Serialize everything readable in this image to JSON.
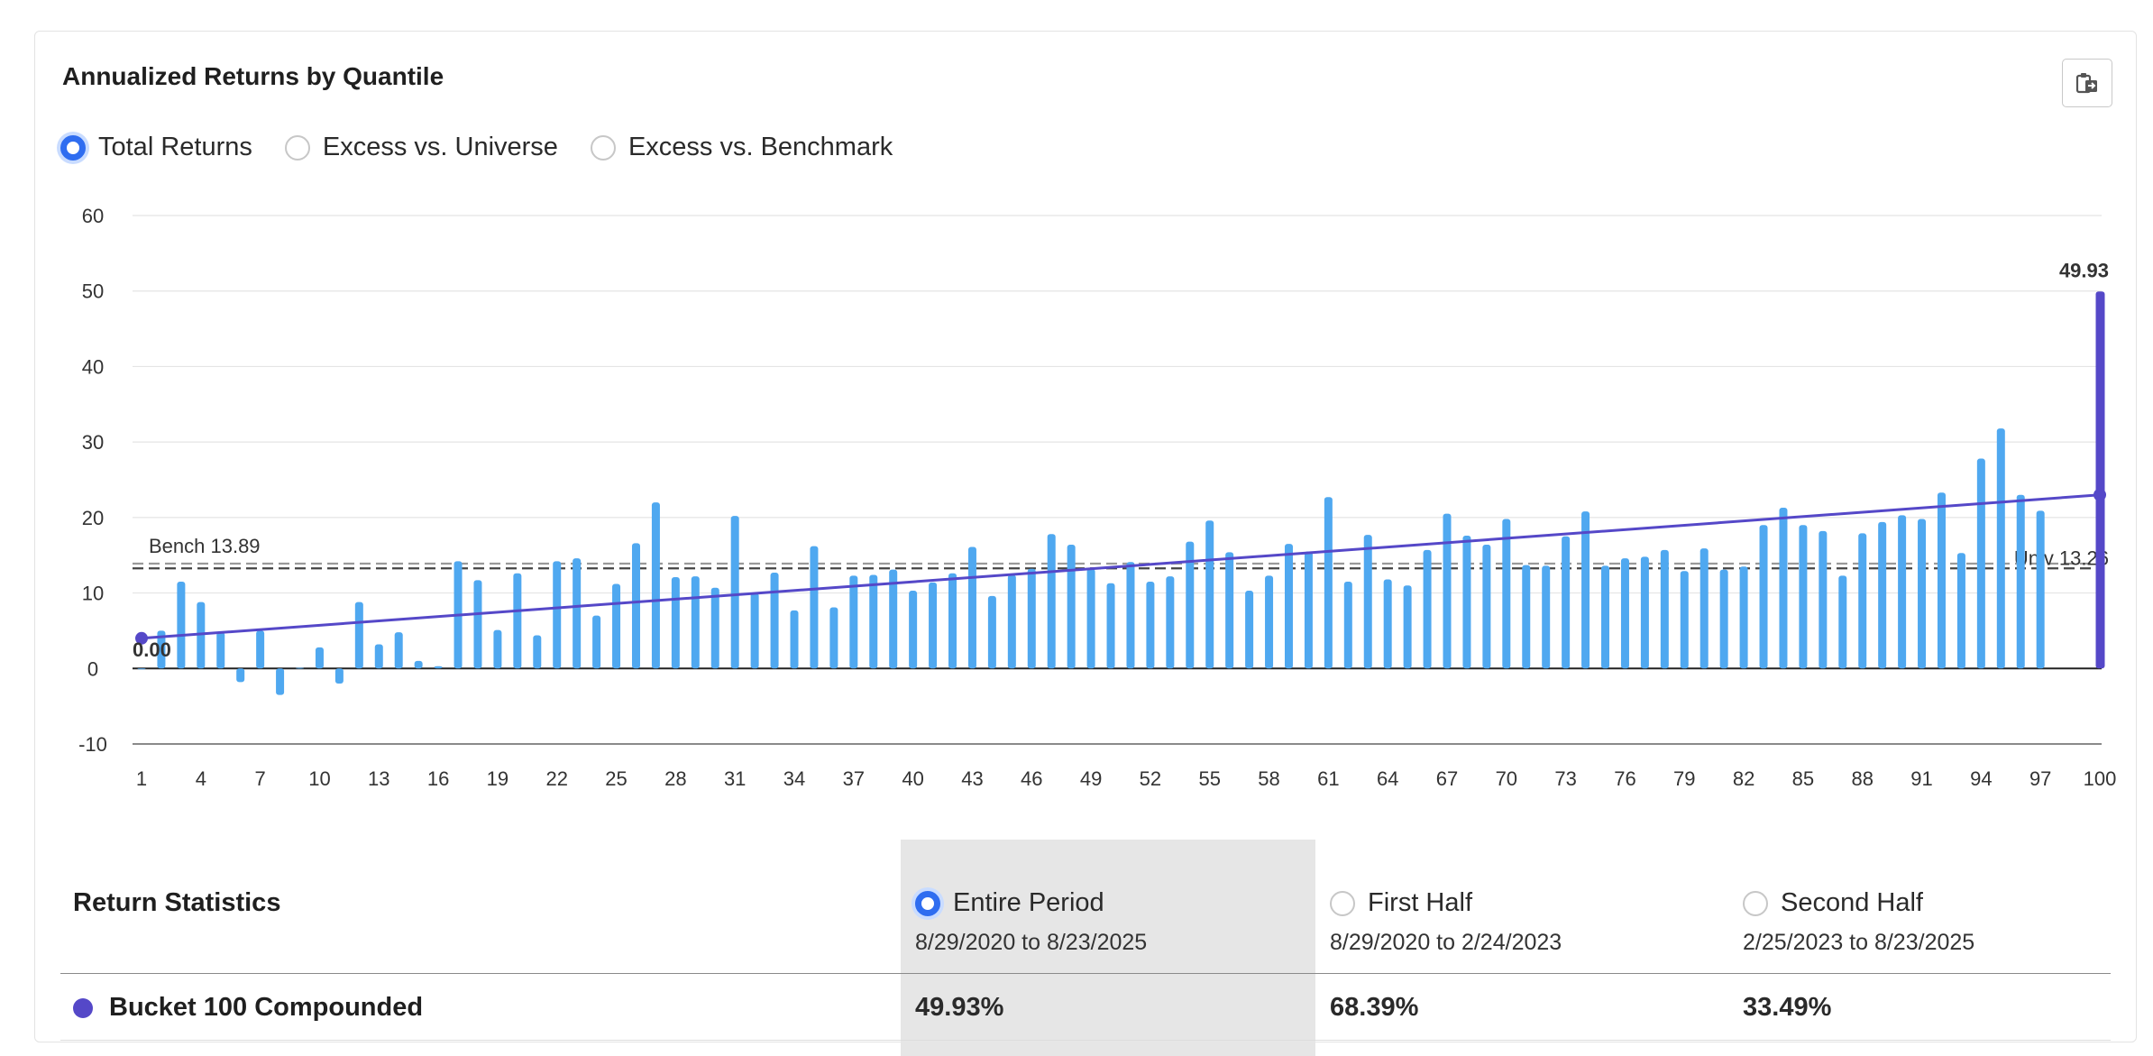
{
  "panel": {
    "title": "Annualized Returns by Quantile",
    "copy_icon": "clipboard-copy-icon",
    "return_type_options": [
      {
        "label": "Total Returns",
        "selected": true
      },
      {
        "label": "Excess vs. Universe",
        "selected": false
      },
      {
        "label": "Excess vs. Benchmark",
        "selected": false
      }
    ]
  },
  "chart_data": {
    "type": "bar",
    "title": "Annualized Returns by Quantile",
    "xlabel": "",
    "ylabel": "",
    "ylim": [
      -10,
      60
    ],
    "yticks": [
      60,
      50,
      40,
      30,
      20,
      10,
      0,
      -10
    ],
    "x_tick_labels": [
      "1",
      "4",
      "7",
      "10",
      "13",
      "16",
      "19",
      "22",
      "25",
      "28",
      "31",
      "34",
      "37",
      "40",
      "43",
      "46",
      "49",
      "52",
      "55",
      "58",
      "61",
      "64",
      "67",
      "70",
      "73",
      "76",
      "79",
      "82",
      "85",
      "88",
      "91",
      "94",
      "97",
      "100"
    ],
    "categories": [
      "1",
      "2",
      "3",
      "4",
      "5",
      "6",
      "7",
      "8",
      "9",
      "10",
      "11",
      "12",
      "13",
      "14",
      "15",
      "16",
      "17",
      "18",
      "19",
      "20",
      "21",
      "22",
      "23",
      "24",
      "25",
      "26",
      "27",
      "28",
      "29",
      "30",
      "31",
      "32",
      "33",
      "34",
      "35",
      "36",
      "37",
      "38",
      "39",
      "40",
      "41",
      "42",
      "43",
      "44",
      "45",
      "46",
      "47",
      "48",
      "49",
      "50",
      "51",
      "52",
      "53",
      "54",
      "55",
      "56",
      "57",
      "58",
      "59",
      "60",
      "61",
      "62",
      "63",
      "64",
      "65",
      "66",
      "67",
      "68",
      "69",
      "70",
      "71",
      "72",
      "73",
      "74",
      "75",
      "76",
      "77",
      "78",
      "79",
      "80",
      "81",
      "82",
      "83",
      "84",
      "85",
      "86",
      "87",
      "88",
      "89",
      "90",
      "91",
      "92",
      "93",
      "94",
      "95",
      "96",
      "97",
      "98",
      "99",
      "100"
    ],
    "values": [
      0.0,
      5.0,
      11.5,
      8.8,
      4.8,
      -1.8,
      5.0,
      -3.5,
      0.1,
      2.8,
      -2.0,
      8.8,
      3.2,
      4.8,
      1.0,
      0.3,
      14.2,
      11.7,
      5.1,
      12.6,
      4.4,
      14.2,
      14.6,
      7.0,
      11.2,
      16.6,
      22.0,
      12.1,
      12.2,
      10.7,
      20.2,
      10.0,
      12.7,
      7.7,
      16.2,
      8.1,
      12.3,
      12.4,
      13.1,
      10.3,
      11.4,
      12.6,
      16.1,
      9.6,
      12.4,
      13.2,
      17.8,
      16.4,
      13.2,
      11.3,
      14.1,
      11.5,
      12.2,
      16.8,
      19.6,
      15.4,
      10.3,
      12.3,
      16.5,
      15.5,
      22.7,
      11.5,
      17.7,
      11.8,
      11.0,
      15.7,
      20.5,
      17.6,
      16.4,
      19.8,
      13.7,
      13.6,
      17.5,
      20.8,
      13.6,
      14.6,
      14.8,
      15.7,
      12.9,
      15.9,
      13.1,
      13.5,
      19.0,
      21.3,
      19.0,
      18.2,
      12.3,
      17.9,
      19.4,
      20.3,
      19.8,
      23.3,
      15.3,
      27.8,
      31.8,
      23.0,
      20.9,
      0,
      0,
      49.93
    ],
    "bar_color": "#4fa8f0",
    "highlight_bucket": "100",
    "highlight_value": 49.93,
    "highlight_label": "49.93",
    "highlight_color": "#5548c8",
    "trend_line": {
      "start_value": 4.0,
      "end_value": 23.0,
      "start_label": "0.00",
      "color": "#5548c8"
    },
    "reference_lines": [
      {
        "label": "Bench 13.89",
        "value": 13.89,
        "color": "#9a9a9a"
      },
      {
        "label": "Univ 13.26",
        "value": 13.26,
        "color": "#444444"
      }
    ]
  },
  "stats": {
    "title": "Return Statistics",
    "periods": [
      {
        "label": "Entire Period",
        "dates": "8/29/2020 to 8/23/2025",
        "selected": true,
        "value": "49.93%"
      },
      {
        "label": "First Half",
        "dates": "8/29/2020 to 2/24/2023",
        "selected": false,
        "value": "68.39%"
      },
      {
        "label": "Second Half",
        "dates": "2/25/2023 to 8/23/2025",
        "selected": false,
        "value": "33.49%"
      }
    ],
    "row_label": "Bucket 100 Compounded",
    "row_color": "#5548c8"
  }
}
